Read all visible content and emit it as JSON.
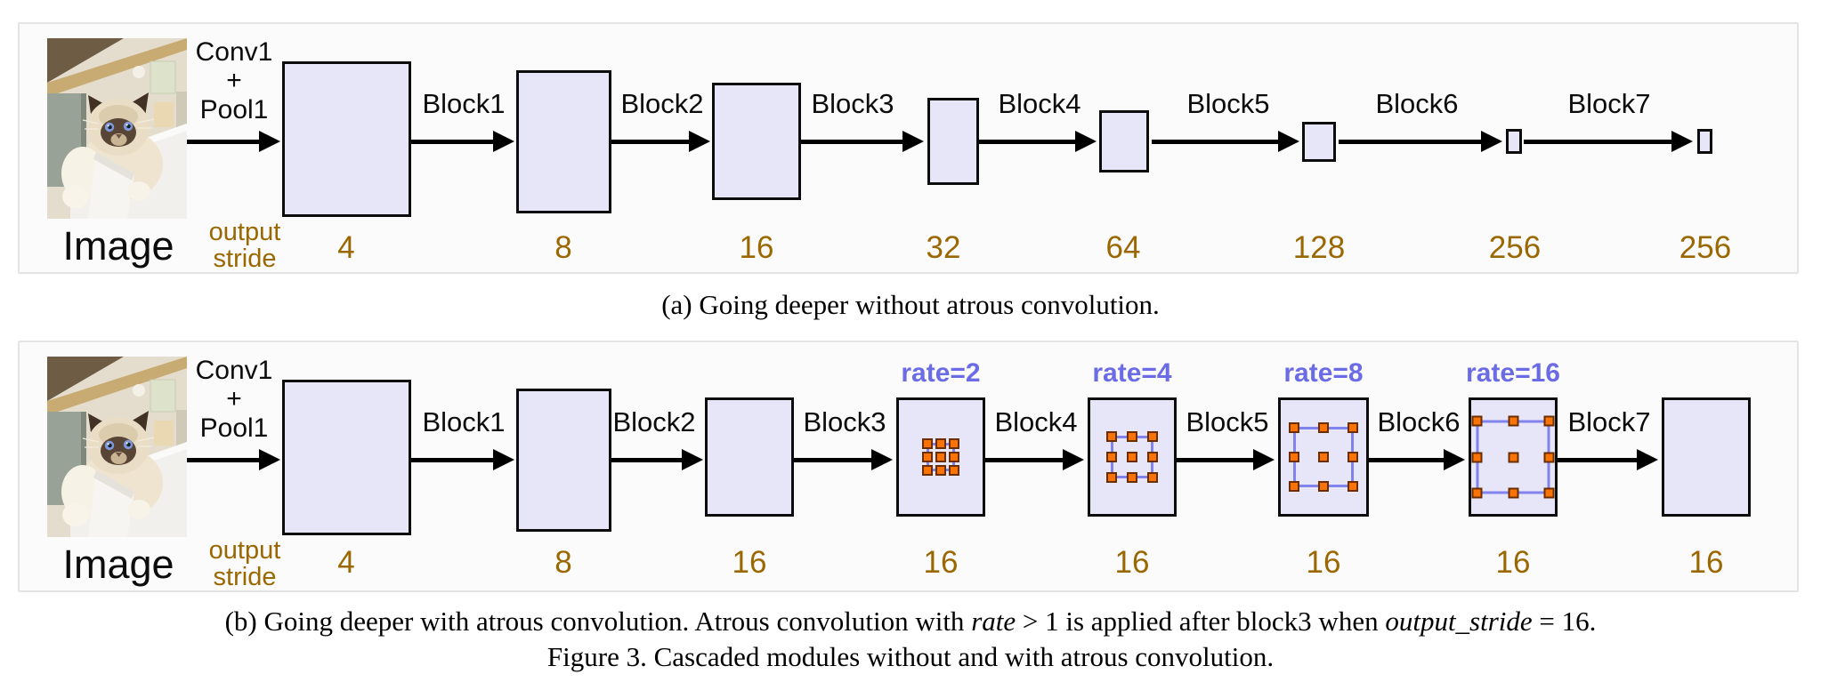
{
  "panel_a": {
    "image_label": "Image",
    "conv_pool_label_lines": [
      "Conv1",
      "+",
      "Pool1"
    ],
    "output_stride_label_lines": [
      "output",
      "stride"
    ],
    "block_labels": [
      "Block1",
      "Block2",
      "Block3",
      "Block4",
      "Block5",
      "Block6",
      "Block7"
    ],
    "output_stride_values": [
      "4",
      "8",
      "16",
      "32",
      "64",
      "128",
      "256",
      "256"
    ]
  },
  "panel_b": {
    "image_label": "Image",
    "conv_pool_label_lines": [
      "Conv1",
      "+",
      "Pool1"
    ],
    "output_stride_label_lines": [
      "output",
      "stride"
    ],
    "block_labels": [
      "Block1",
      "Block2",
      "Block3",
      "Block4",
      "Block5",
      "Block6",
      "Block7"
    ],
    "rate_labels": [
      "rate=2",
      "rate=4",
      "rate=8",
      "rate=16"
    ],
    "output_stride_values": [
      "4",
      "8",
      "16",
      "16",
      "16",
      "16",
      "16",
      "16"
    ]
  },
  "captions": {
    "a": "(a) Going deeper without atrous convolution.",
    "b_segments": [
      {
        "text": "(b) Going deeper with atrous convolution. Atrous convolution with ",
        "italic": false
      },
      {
        "text": "rate",
        "italic": true
      },
      {
        "text": " > 1 is applied after block3 when ",
        "italic": false
      },
      {
        "text": "output_stride",
        "italic": true
      },
      {
        "text": " = 16.",
        "italic": false
      }
    ],
    "figure": "Figure 3. Cascaded modules without and with atrous convolution."
  },
  "colors": {
    "block_fill": "#e6e6f8",
    "stride_text": "#9a6700",
    "rate_text": "#6b6be6",
    "atrous_dot": "#f97306",
    "atrous_frame": "#8282ec"
  }
}
